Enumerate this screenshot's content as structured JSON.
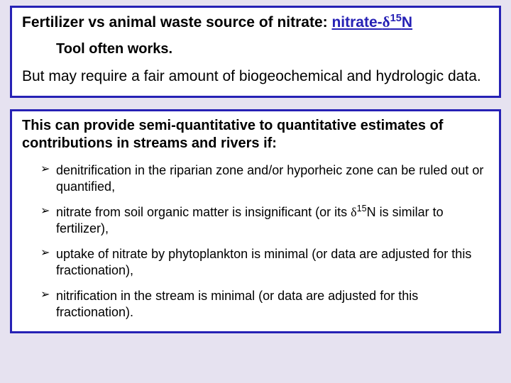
{
  "box1": {
    "title_prefix": "Fertilizer vs animal waste source of nitrate:  ",
    "title_tool_pre": "nitrate-",
    "title_tool_delta": "δ",
    "title_tool_sup": "15",
    "title_tool_post": "N",
    "subline": "Tool often works.",
    "caveat": "But may require a fair amount of biogeochemical and hydrologic data."
  },
  "box2": {
    "intro": "This can provide semi-quantitative to quantitative estimates of contributions in streams and rivers if:",
    "bullets": [
      {
        "text": "denitrification in the riparian zone and/or hyporheic zone can be ruled out or quantified,"
      },
      {
        "pre": "nitrate from soil organic matter is insignificant (or its ",
        "delta": "δ",
        "sup": "15",
        "post": "N is similar to fertilizer),"
      },
      {
        "text": "uptake of nitrate by phytoplankton is minimal (or data are adjusted for this fractionation),"
      },
      {
        "text": "nitrification in the stream is minimal (or data are adjusted for this fractionation)."
      }
    ]
  },
  "colors": {
    "page_bg": "#e6e2f0",
    "box_bg": "#ffffff",
    "box_border": "#2621b5",
    "link": "#2621b5",
    "text": "#000000"
  }
}
